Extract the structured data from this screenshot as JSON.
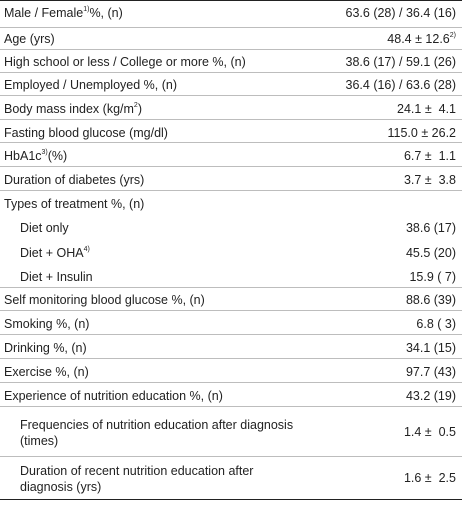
{
  "rows": [
    {
      "label": "Male / Female",
      "note": "1)",
      "label_tail": "%, (n)",
      "value": "63.6 (28) / 36.4 (16)",
      "value_note": ""
    },
    {
      "label": "Age (yrs)",
      "note": "",
      "label_tail": "",
      "value": "48.4 ± 12.6",
      "value_note": "2)"
    },
    {
      "label": "High school or less / College or more %, (n)",
      "note": "",
      "label_tail": "",
      "value": "38.6 (17) / 59.1 (26)",
      "value_note": ""
    },
    {
      "label": "Employed / Unemployed %, (n)",
      "note": "",
      "label_tail": "",
      "value": "36.4 (16) / 63.6 (28)",
      "value_note": ""
    },
    {
      "label": "Body mass index (kg/m",
      "note": "2",
      "label_tail": ")",
      "value": "24.1 ±  4.1",
      "value_note": ""
    },
    {
      "label": "Fasting blood glucose (mg/dl)",
      "note": "",
      "label_tail": "",
      "value": "115.0 ± 26.2",
      "value_note": ""
    },
    {
      "label": "HbA1c",
      "note": "3)",
      "label_tail": "(%)",
      "value": "6.7 ±  1.1",
      "value_note": ""
    },
    {
      "label": "Duration of diabetes (yrs)",
      "note": "",
      "label_tail": "",
      "value": "3.7 ±  3.8",
      "value_note": ""
    },
    {
      "label": "Types of treatment %, (n)",
      "note": "",
      "label_tail": "",
      "value": "",
      "value_note": ""
    },
    {
      "label": "Diet only",
      "note": "",
      "label_tail": "",
      "value": "38.6 (17)",
      "value_note": ""
    },
    {
      "label": "Diet + OHA",
      "note": "4)",
      "label_tail": "",
      "value": "45.5 (20)",
      "value_note": ""
    },
    {
      "label": "Diet + Insulin",
      "note": "",
      "label_tail": "",
      "value": "15.9 ( 7)",
      "value_note": ""
    },
    {
      "label": "Self monitoring blood glucose %, (n)",
      "note": "",
      "label_tail": "",
      "value": "88.6 (39)",
      "value_note": ""
    },
    {
      "label": "Smoking %, (n)",
      "note": "",
      "label_tail": "",
      "value": "6.8 ( 3)",
      "value_note": ""
    },
    {
      "label": "Drinking %, (n)",
      "note": "",
      "label_tail": "",
      "value": "34.1 (15)",
      "value_note": ""
    },
    {
      "label": "Exercise %, (n)",
      "note": "",
      "label_tail": "",
      "value": "97.7 (43)",
      "value_note": ""
    },
    {
      "label": "Experience of nutrition education %, (n)",
      "note": "",
      "label_tail": "",
      "value": "43.2 (19)",
      "value_note": ""
    },
    {
      "label": "Frequencies of nutrition education after diagnosis (times)",
      "note": "",
      "label_tail": "",
      "value": "1.4 ±  0.5",
      "value_note": ""
    },
    {
      "label": "Duration of recent nutrition education after diagnosis (yrs)",
      "note": "",
      "label_tail": "",
      "value": "1.6 ±  2.5",
      "value_note": ""
    }
  ]
}
